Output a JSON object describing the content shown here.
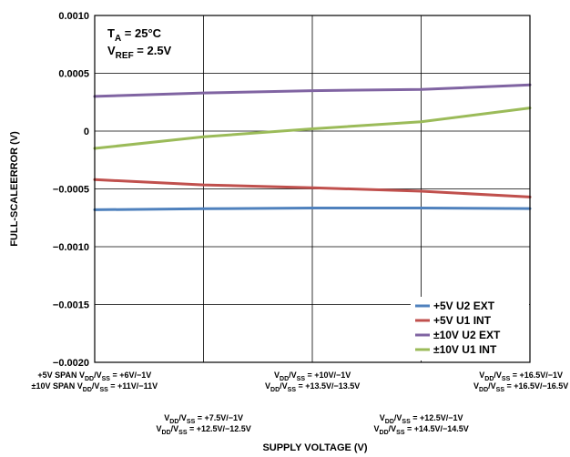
{
  "chart_data": {
    "type": "line",
    "title": "",
    "ylabel": "FULL-SCALEERROR (V)",
    "xlabel": "SUPPLY VOLTAGE (V)",
    "ylim": [
      -0.002,
      0.001
    ],
    "yticks": [
      0.001,
      0.0005,
      0,
      -0.0005,
      -0.001,
      -0.0015,
      -0.002
    ],
    "ytick_labels": [
      "0.0010",
      "0.0005",
      "0",
      "−0.0005",
      "−0.0010",
      "−0.0015",
      "−0.0020"
    ],
    "x": [
      0,
      1,
      2,
      3,
      4
    ],
    "xlim": [
      0,
      4
    ],
    "grid": true,
    "legend_position": "bottom-right",
    "annotation": {
      "ta_main": "T",
      "ta_sub": "A",
      "ta_rest": " = 25°C",
      "vref_main": "V",
      "vref_sub": "REF",
      "vref_rest": " = 2.5V"
    },
    "series": [
      {
        "name": "+5V U2 EXT",
        "color": "#4f81bd",
        "values": [
          -0.00068,
          -0.000672,
          -0.000665,
          -0.000665,
          -0.00067
        ]
      },
      {
        "name": "+5V U1 INT",
        "color": "#c0504d",
        "values": [
          -0.00042,
          -0.000465,
          -0.00049,
          -0.00052,
          -0.00057
        ]
      },
      {
        "name": "±10V U2 EXT",
        "color": "#8064a2",
        "values": [
          0.0003,
          0.00033,
          0.00035,
          0.00036,
          0.0004
        ]
      },
      {
        "name": "±10V U1 INT",
        "color": "#9bbb59",
        "values": [
          -0.00015,
          -5e-05,
          2e-05,
          8e-05,
          0.0002
        ]
      }
    ],
    "x_tick_labels": [
      {
        "lines": [
          [
            {
              "t": "+5V SPAN V"
            },
            {
              "s": "DD"
            },
            {
              "t": "/V"
            },
            {
              "s": "SS"
            },
            {
              "t": " = +6V/−1V"
            }
          ],
          [
            {
              "t": "±10V SPAN V"
            },
            {
              "s": "DD"
            },
            {
              "t": "/V"
            },
            {
              "s": "SS"
            },
            {
              "t": " = +11V/−11V"
            }
          ]
        ]
      },
      {
        "lines": [
          [
            {
              "t": "V"
            },
            {
              "s": "DD"
            },
            {
              "t": "/V"
            },
            {
              "s": "SS"
            },
            {
              "t": " = +7.5V/−1V"
            }
          ],
          [
            {
              "t": "V"
            },
            {
              "s": "DD"
            },
            {
              "t": "/V"
            },
            {
              "s": "SS"
            },
            {
              "t": " = +12.5V/−12.5V"
            }
          ]
        ]
      },
      {
        "lines": [
          [
            {
              "t": "V"
            },
            {
              "s": "DD"
            },
            {
              "t": "/V"
            },
            {
              "s": "SS"
            },
            {
              "t": " = +10V/−1V"
            }
          ],
          [
            {
              "t": "V"
            },
            {
              "s": "DD"
            },
            {
              "t": "/V"
            },
            {
              "s": "SS"
            },
            {
              "t": " = +13.5V/−13.5V"
            }
          ]
        ]
      },
      {
        "lines": [
          [
            {
              "t": "V"
            },
            {
              "s": "DD"
            },
            {
              "t": "/V"
            },
            {
              "s": "SS"
            },
            {
              "t": " = +12.5V/−1V"
            }
          ],
          [
            {
              "t": "V"
            },
            {
              "s": "DD"
            },
            {
              "t": "/V"
            },
            {
              "s": "SS"
            },
            {
              "t": " = +14.5V/−14.5V"
            }
          ]
        ]
      },
      {
        "lines": [
          [
            {
              "t": "V"
            },
            {
              "s": "DD"
            },
            {
              "t": "/V"
            },
            {
              "s": "SS"
            },
            {
              "t": " = +16.5V/−1V"
            }
          ],
          [
            {
              "t": "V"
            },
            {
              "s": "DD"
            },
            {
              "t": "/V"
            },
            {
              "s": "SS"
            },
            {
              "t": " = +16.5V/−16.5V"
            }
          ]
        ]
      }
    ]
  }
}
